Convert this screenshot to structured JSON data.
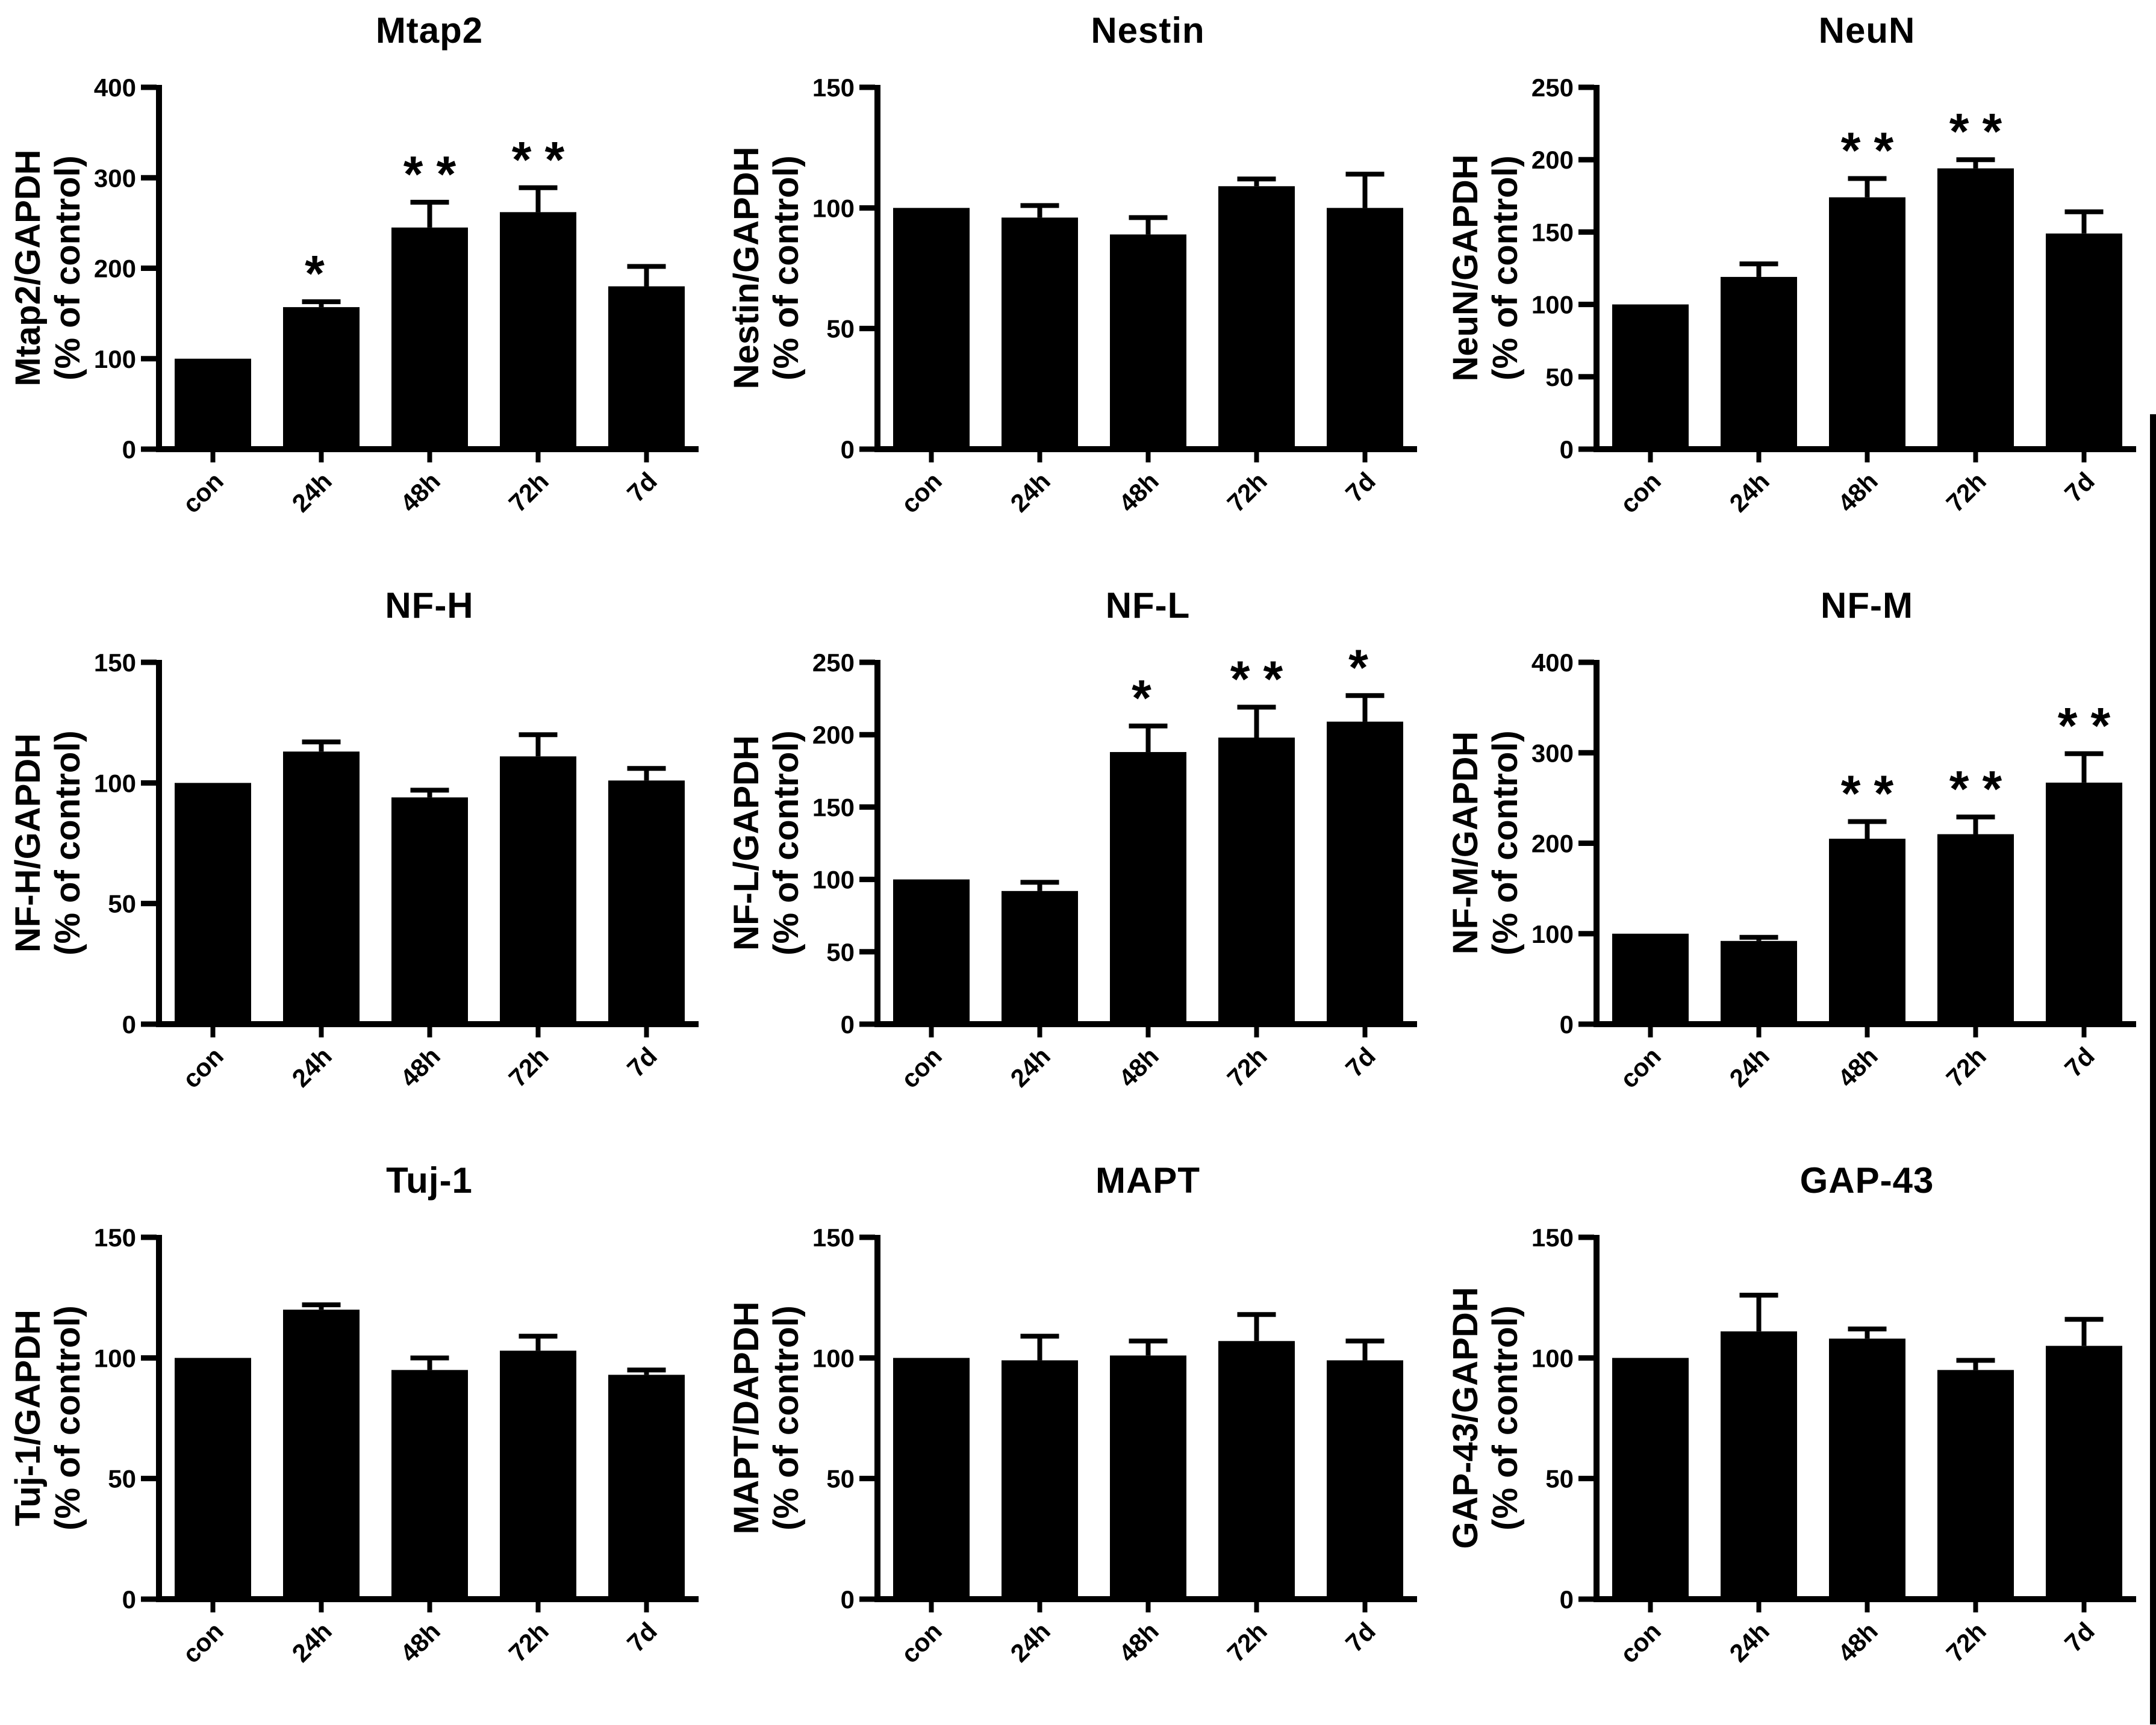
{
  "style": {
    "background": "#ffffff",
    "bar_color": "#000000",
    "axis_color": "#000000",
    "text_color": "#000000"
  },
  "chart_data": [
    {
      "type": "bar",
      "title": "Mtap2",
      "ylabel_line1": "Mtap2/GAPDH",
      "ylabel_line2": "(% of control)",
      "categories": [
        "con",
        "24h",
        "48h",
        "72h",
        "7d"
      ],
      "values": [
        100,
        157,
        245,
        262,
        180
      ],
      "errors_plus": [
        0,
        6,
        28,
        27,
        22
      ],
      "significance": [
        "",
        "*",
        "**",
        "**",
        ""
      ],
      "ylim": [
        0,
        400
      ],
      "ytick_interval": 100,
      "grid": false
    },
    {
      "type": "bar",
      "title": "Nestin",
      "ylabel_line1": "Nestin/GAPDH",
      "ylabel_line2": "(% of control)",
      "categories": [
        "con",
        "24h",
        "48h",
        "72h",
        "7d"
      ],
      "values": [
        100,
        96,
        89,
        109,
        100
      ],
      "errors_plus": [
        0,
        5,
        7,
        3,
        14
      ],
      "significance": [
        "",
        "",
        "",
        "",
        ""
      ],
      "ylim": [
        0,
        150
      ],
      "ytick_interval": 50,
      "grid": false
    },
    {
      "type": "bar",
      "title": "NeuN",
      "ylabel_line1": "NeuN/GAPDH",
      "ylabel_line2": "(% of control)",
      "categories": [
        "con",
        "24h",
        "48h",
        "72h",
        "7d"
      ],
      "values": [
        100,
        119,
        174,
        194,
        149
      ],
      "errors_plus": [
        0,
        9,
        13,
        6,
        15
      ],
      "significance": [
        "",
        "",
        "**",
        "**",
        ""
      ],
      "ylim": [
        0,
        250
      ],
      "ytick_interval": 50,
      "grid": false
    },
    {
      "type": "bar",
      "title": "NF-H",
      "ylabel_line1": "NF-H/GAPDH",
      "ylabel_line2": "(% of control)",
      "categories": [
        "con",
        "24h",
        "48h",
        "72h",
        "7d"
      ],
      "values": [
        100,
        113,
        94,
        111,
        101
      ],
      "errors_plus": [
        0,
        4,
        3,
        9,
        5
      ],
      "significance": [
        "",
        "",
        "",
        "",
        ""
      ],
      "ylim": [
        0,
        150
      ],
      "ytick_interval": 50,
      "grid": false
    },
    {
      "type": "bar",
      "title": "NF-L",
      "ylabel_line1": "NF-L/GAPDH",
      "ylabel_line2": "(% of control)",
      "categories": [
        "con",
        "24h",
        "48h",
        "72h",
        "7d"
      ],
      "values": [
        100,
        92,
        188,
        198,
        209
      ],
      "errors_plus": [
        0,
        6,
        18,
        21,
        18
      ],
      "significance": [
        "",
        "",
        "*",
        "**",
        "*"
      ],
      "ylim": [
        0,
        250
      ],
      "ytick_interval": 50,
      "grid": false
    },
    {
      "type": "bar",
      "title": "NF-M",
      "ylabel_line1": "NF-M/GAPDH",
      "ylabel_line2": "(% of control)",
      "categories": [
        "con",
        "24h",
        "48h",
        "72h",
        "7d"
      ],
      "values": [
        100,
        92,
        205,
        210,
        267
      ],
      "errors_plus": [
        0,
        4,
        19,
        19,
        32
      ],
      "significance": [
        "",
        "",
        "**",
        "**",
        "**"
      ],
      "ylim": [
        0,
        400
      ],
      "ytick_interval": 100,
      "grid": false
    },
    {
      "type": "bar",
      "title": "Tuj-1",
      "ylabel_line1": "Tuj-1/GAPDH",
      "ylabel_line2": "(% of control)",
      "categories": [
        "con",
        "24h",
        "48h",
        "72h",
        "7d"
      ],
      "values": [
        100,
        120,
        95,
        103,
        93
      ],
      "errors_plus": [
        0,
        2,
        5,
        6,
        2
      ],
      "significance": [
        "",
        "",
        "",
        "",
        ""
      ],
      "ylim": [
        0,
        150
      ],
      "ytick_interval": 50,
      "grid": false
    },
    {
      "type": "bar",
      "title": "MAPT",
      "ylabel_line1": "MAPT/DAPDH",
      "ylabel_line2": "(% of control)",
      "categories": [
        "con",
        "24h",
        "48h",
        "72h",
        "7d"
      ],
      "values": [
        100,
        99,
        101,
        107,
        99
      ],
      "errors_plus": [
        0,
        10,
        6,
        11,
        8
      ],
      "significance": [
        "",
        "",
        "",
        "",
        ""
      ],
      "ylim": [
        0,
        150
      ],
      "ytick_interval": 50,
      "grid": false
    },
    {
      "type": "bar",
      "title": "GAP-43",
      "ylabel_line1": "GAP-43/GAPDH",
      "ylabel_line2": "(% of control)",
      "categories": [
        "con",
        "24h",
        "48h",
        "72h",
        "7d"
      ],
      "values": [
        100,
        111,
        108,
        95,
        105
      ],
      "errors_plus": [
        0,
        15,
        4,
        4,
        11
      ],
      "significance": [
        "",
        "",
        "",
        "",
        ""
      ],
      "ylim": [
        0,
        150
      ],
      "ytick_interval": 50,
      "grid": false
    }
  ]
}
